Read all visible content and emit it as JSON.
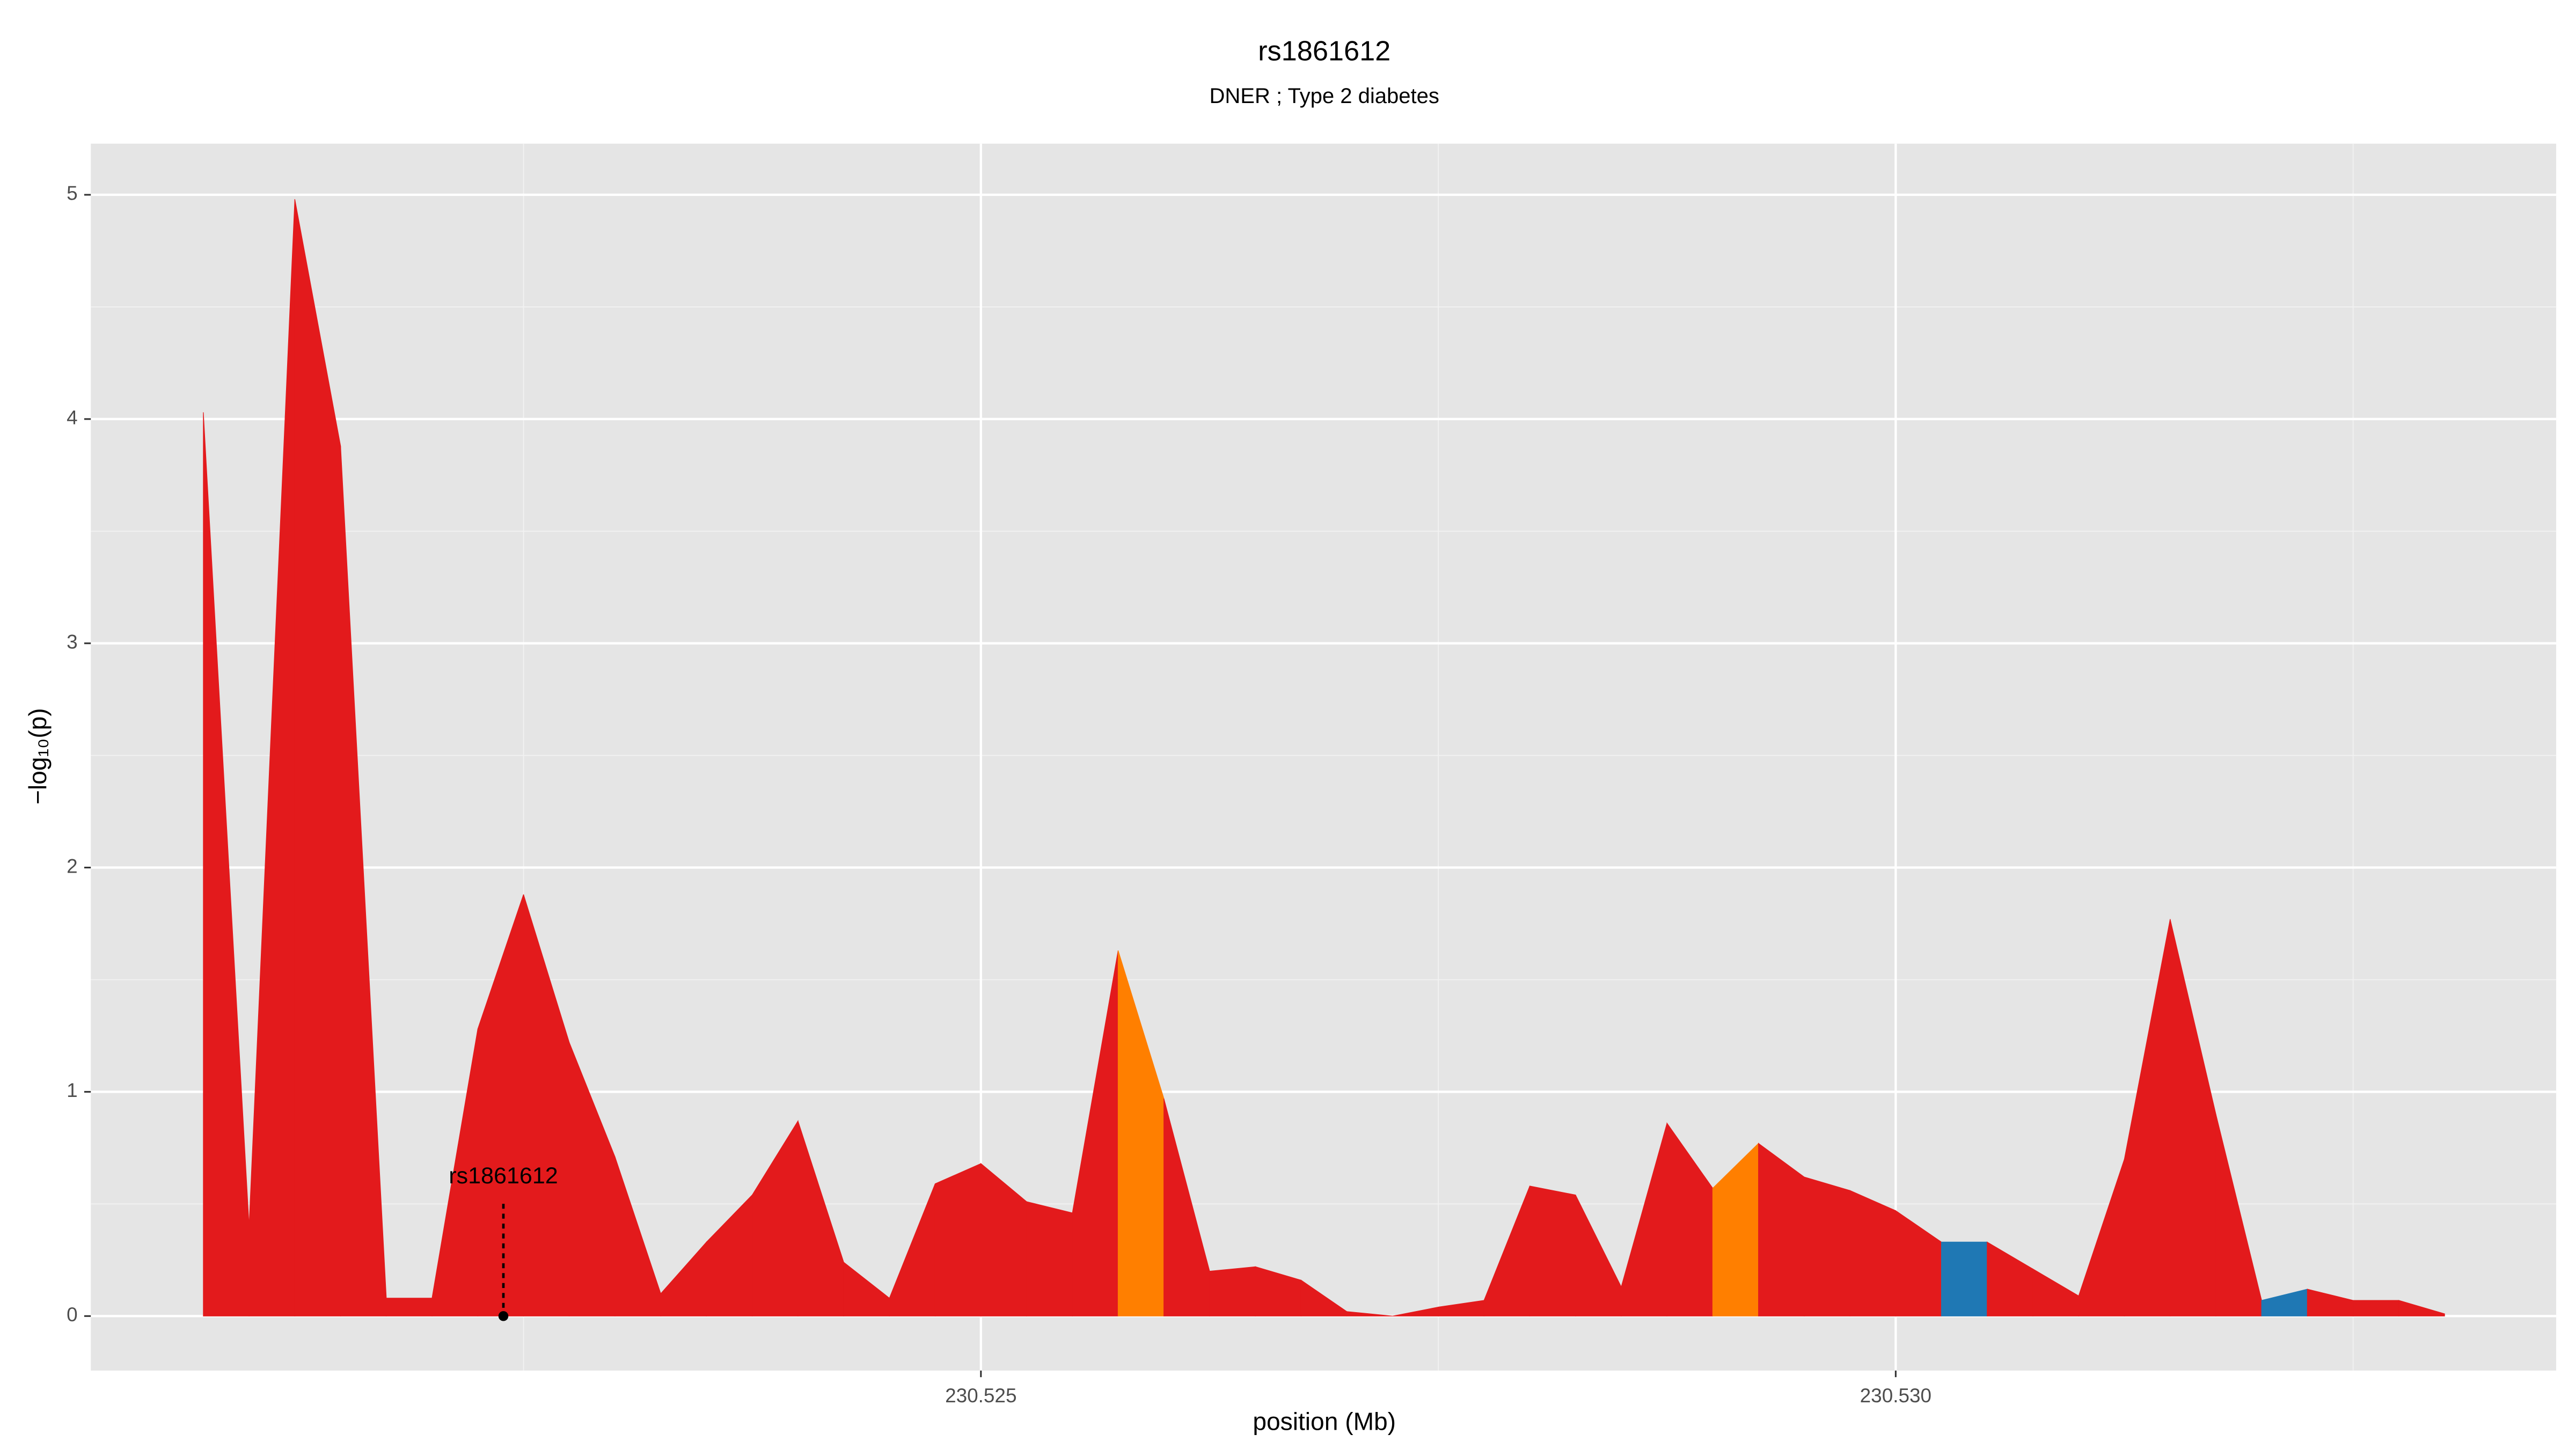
{
  "chart_data": {
    "type": "area",
    "title": "rs1861612",
    "subtitle": "DNER ; Type 2 diabetes",
    "x_label": "position (Mb)",
    "y_label": "−log₁₀(p)",
    "x": [
      230.52075,
      230.521,
      230.52125,
      230.5215,
      230.52175,
      230.522,
      230.52225,
      230.5225,
      230.52275,
      230.523,
      230.52325,
      230.5235,
      230.52375,
      230.524,
      230.52425,
      230.5245,
      230.52475,
      230.525,
      230.52525,
      230.5255,
      230.52575,
      230.526,
      230.52625,
      230.5265,
      230.52675,
      230.527,
      230.52725,
      230.5275,
      230.52775,
      230.528,
      230.52825,
      230.5285,
      230.52875,
      230.529,
      230.52925,
      230.5295,
      230.52975,
      230.53,
      230.53025,
      230.5305,
      230.53075,
      230.531,
      230.53125,
      230.5315,
      230.53175,
      230.532,
      230.53225,
      230.5325,
      230.53275,
      230.533
    ],
    "values": [
      4.03,
      0.4,
      4.98,
      3.88,
      0.08,
      0.08,
      1.28,
      1.88,
      1.22,
      0.71,
      0.1,
      0.33,
      0.54,
      0.87,
      0.24,
      0.08,
      0.59,
      0.68,
      0.51,
      0.46,
      1.63,
      0.97,
      0.2,
      0.22,
      0.16,
      0.02,
      0.0,
      0.04,
      0.07,
      0.58,
      0.54,
      0.13,
      0.86,
      0.57,
      0.77,
      0.62,
      0.56,
      0.47,
      0.33,
      0.33,
      0.21,
      0.09,
      0.7,
      1.77,
      0.9,
      0.07,
      0.12,
      0.07,
      0.07,
      0.01
    ],
    "segment_colors": [
      "#e31a1c",
      "#e31a1c",
      "#e31a1c",
      "#e31a1c",
      "#e31a1c",
      "#e31a1c",
      "#e31a1c",
      "#e31a1c",
      "#e31a1c",
      "#e31a1c",
      "#e31a1c",
      "#e31a1c",
      "#e31a1c",
      "#e31a1c",
      "#e31a1c",
      "#e31a1c",
      "#e31a1c",
      "#e31a1c",
      "#e31a1c",
      "#e31a1c",
      "#ff7f00",
      "#e31a1c",
      "#e31a1c",
      "#e31a1c",
      "#e31a1c",
      "#e31a1c",
      "#e31a1c",
      "#e31a1c",
      "#e31a1c",
      "#e31a1c",
      "#e31a1c",
      "#e31a1c",
      "#e31a1c",
      "#ff7f00",
      "#e31a1c",
      "#e31a1c",
      "#e31a1c",
      "#e31a1c",
      "#1f78b4",
      "#e31a1c",
      "#e31a1c",
      "#e31a1c",
      "#e31a1c",
      "#e31a1c",
      "#e31a1c",
      "#1f78b4",
      "#e31a1c",
      "#e31a1c",
      "#e31a1c"
    ],
    "xlim": [
      230.520135,
      230.53361
    ],
    "ylim": [
      -0.243,
      5.228
    ],
    "xticks": [
      230.525,
      {
        "value": 230.53,
        "label": "230.530"
      }
    ],
    "x_minor_ticks": [
      230.5225,
      230.5275,
      230.5325
    ],
    "yticks": [
      0,
      1,
      2,
      3,
      4,
      5
    ],
    "y_minor_ticks": [
      0.5,
      1.5,
      2.5,
      3.5,
      4.5
    ],
    "grid": true,
    "annotation": {
      "text": "rs1861612",
      "x": 230.52239,
      "y": 0
    }
  }
}
